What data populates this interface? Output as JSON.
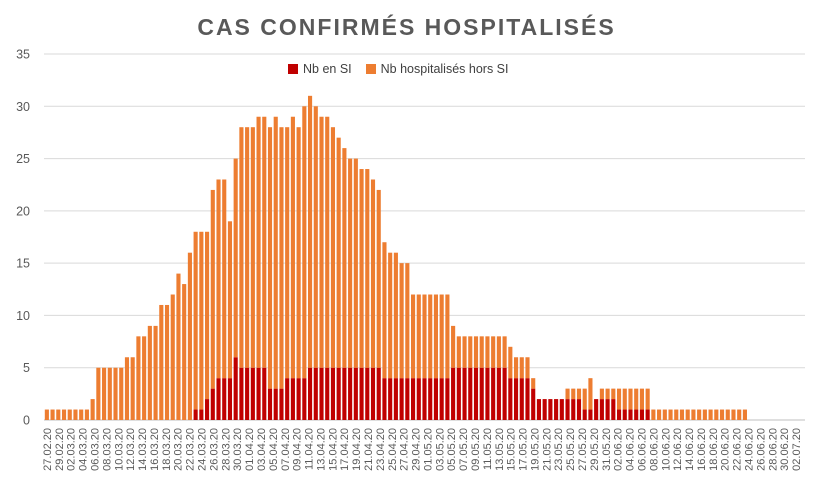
{
  "chart_data": {
    "type": "bar",
    "stacked": true,
    "title": "CAS CONFIRMÉS HOSPITALISÉS",
    "xlabel": "",
    "ylabel": "",
    "ylim": [
      0,
      35
    ],
    "yticks": [
      0,
      5,
      10,
      15,
      20,
      25,
      30,
      35
    ],
    "grid": true,
    "legend_position": "top-center",
    "x_tick_labels": [
      "27.02.20",
      "29.02.20",
      "02.03.20",
      "04.03.20",
      "06.03.20",
      "08.03.20",
      "10.03.20",
      "12.03.20",
      "14.03.20",
      "16.03.20",
      "18.03.20",
      "20.03.20",
      "22.03.20",
      "24.03.20",
      "26.03.20",
      "28.03.20",
      "30.03.20",
      "01.04.20",
      "03.04.20",
      "05.04.20",
      "07.04.20",
      "09.04.20",
      "11.04.20",
      "13.04.20",
      "15.04.20",
      "17.04.20",
      "19.04.20",
      "21.04.20",
      "23.04.20",
      "25.04.20",
      "27.04.20",
      "29.04.20",
      "01.05.20",
      "03.05.20",
      "05.05.20",
      "07.05.20",
      "09.05.20",
      "11.05.20",
      "13.05.20",
      "15.05.20",
      "17.05.20",
      "19.05.20",
      "21.05.20",
      "23.05.20",
      "25.05.20",
      "27.05.20",
      "29.05.20",
      "31.05.20",
      "02.06.20",
      "04.06.20",
      "06.06.20",
      "08.06.20",
      "10.06.20",
      "12.06.20",
      "14.06.20",
      "16.06.20",
      "18.06.20",
      "20.06.20",
      "22.06.20",
      "24.06.20",
      "26.06.20",
      "28.06.20",
      "30.06.20",
      "02.07.20"
    ],
    "x_start": "27.02.20",
    "x_end": "02.07.20",
    "series": [
      {
        "name": "Nb en SI",
        "color": "#C00000",
        "values": [
          0,
          0,
          0,
          0,
          0,
          0,
          0,
          0,
          0,
          0,
          0,
          0,
          0,
          0,
          0,
          0,
          0,
          0,
          0,
          0,
          0,
          0,
          0,
          0,
          0,
          0,
          1,
          1,
          2,
          3,
          4,
          4,
          4,
          6,
          5,
          5,
          5,
          5,
          5,
          3,
          3,
          3,
          4,
          4,
          4,
          4,
          5,
          5,
          5,
          5,
          5,
          5,
          5,
          5,
          5,
          5,
          5,
          5,
          5,
          4,
          4,
          4,
          4,
          4,
          4,
          4,
          4,
          4,
          4,
          4,
          4,
          5,
          5,
          5,
          5,
          5,
          5,
          5,
          5,
          5,
          5,
          4,
          4,
          4,
          4,
          3,
          2,
          2,
          2,
          2,
          2,
          2,
          2,
          2,
          1,
          1,
          2,
          2,
          2,
          2,
          1,
          1,
          1,
          1,
          1,
          1,
          0,
          0,
          0,
          0,
          0,
          0,
          0,
          0,
          0,
          0,
          0,
          0,
          0,
          0,
          0,
          0,
          0,
          0,
          0,
          0,
          0,
          0,
          0,
          0,
          0,
          0,
          0
        ]
      },
      {
        "name": "Nb hospitalisés hors SI",
        "color": "#ED7D31",
        "values": [
          1,
          1,
          1,
          1,
          1,
          1,
          1,
          1,
          2,
          5,
          5,
          5,
          5,
          5,
          6,
          6,
          8,
          8,
          9,
          9,
          11,
          11,
          12,
          14,
          13,
          16,
          17,
          17,
          16,
          19,
          19,
          19,
          15,
          19,
          23,
          23,
          23,
          24,
          24,
          25,
          26,
          25,
          24,
          25,
          24,
          26,
          26,
          25,
          24,
          24,
          23,
          22,
          21,
          20,
          20,
          19,
          19,
          18,
          17,
          13,
          12,
          12,
          11,
          11,
          8,
          8,
          8,
          8,
          8,
          8,
          8,
          4,
          3,
          3,
          3,
          3,
          3,
          3,
          3,
          3,
          3,
          3,
          2,
          2,
          2,
          1,
          0,
          0,
          0,
          0,
          0,
          1,
          1,
          1,
          2,
          3,
          0,
          1,
          1,
          1,
          2,
          2,
          2,
          2,
          2,
          2,
          1,
          1,
          1,
          1,
          1,
          1,
          1,
          1,
          1,
          1,
          1,
          1,
          1,
          1,
          1,
          1,
          1,
          0,
          0,
          0,
          0,
          0,
          0,
          0,
          0,
          0,
          0
        ]
      }
    ]
  },
  "legend": {
    "entries": [
      "Nb en SI",
      "Nb hospitalisés hors SI"
    ]
  }
}
